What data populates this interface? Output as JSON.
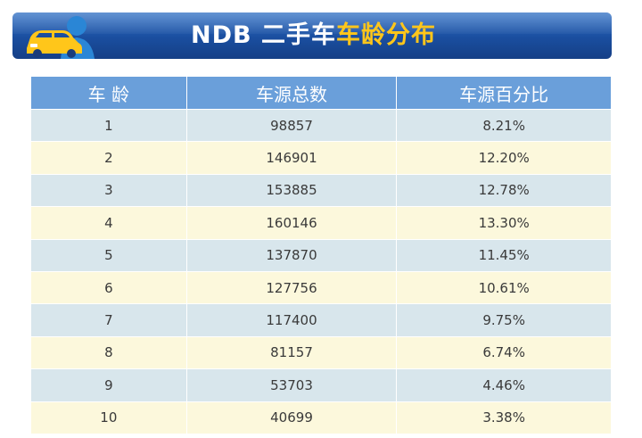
{
  "banner": {
    "title_prefix": "NDB 二手车",
    "title_accent": "车龄分布",
    "accent_color": "#ffc61a",
    "background_color": "#1a4e9f",
    "logo_icon": "car-driver-logo-icon"
  },
  "table": {
    "headers": [
      "车 龄",
      "车源总数",
      "车源百分比"
    ],
    "header_color": "#6a9fda",
    "row_colors": [
      "#d8e6ec",
      "#fcf8dc"
    ],
    "rows": [
      {
        "age": "1",
        "count": "98857",
        "percent": "8.21%"
      },
      {
        "age": "2",
        "count": "146901",
        "percent": "12.20%"
      },
      {
        "age": "3",
        "count": "153885",
        "percent": "12.78%"
      },
      {
        "age": "4",
        "count": "160146",
        "percent": "13.30%"
      },
      {
        "age": "5",
        "count": "137870",
        "percent": "11.45%"
      },
      {
        "age": "6",
        "count": "127756",
        "percent": "10.61%"
      },
      {
        "age": "7",
        "count": "117400",
        "percent": "9.75%"
      },
      {
        "age": "8",
        "count": "81157",
        "percent": "6.74%"
      },
      {
        "age": "9",
        "count": "53703",
        "percent": "4.46%"
      },
      {
        "age": "10",
        "count": "40699",
        "percent": "3.38%"
      }
    ]
  }
}
